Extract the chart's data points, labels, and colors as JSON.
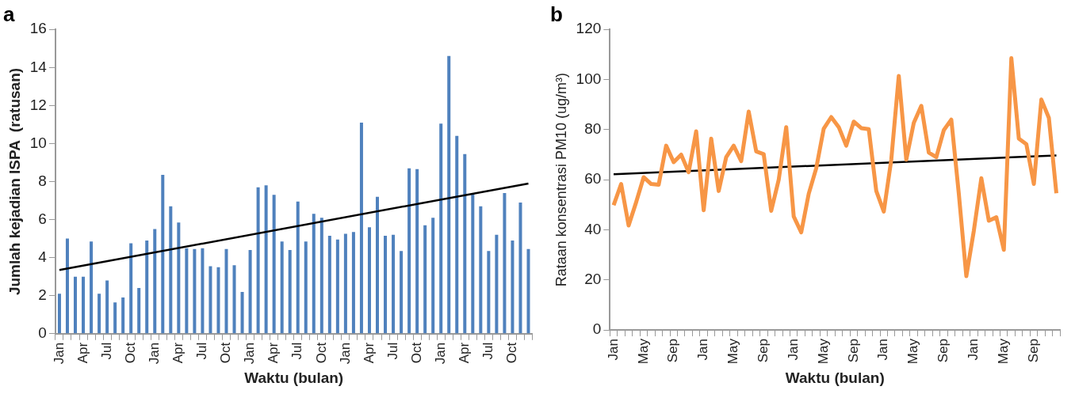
{
  "chart_data": [
    {
      "type": "bar",
      "title": "a",
      "xlabel": "Waktu (bulan)",
      "ylabel": "Jumlah kejadian ISPA  (ratusan)",
      "categories": [
        "Jan",
        null,
        null,
        "Apr",
        null,
        null,
        "Jul",
        null,
        null,
        "Oct",
        null,
        null,
        "Jan",
        null,
        null,
        "Apr",
        null,
        null,
        "Jul",
        null,
        null,
        "Oct",
        null,
        null,
        "Jan",
        null,
        null,
        "Apr",
        null,
        null,
        "Jul",
        null,
        null,
        "Oct",
        null,
        null,
        "Jan",
        null,
        null,
        "Apr",
        null,
        null,
        "Jul",
        null,
        null,
        "Oct",
        null,
        null,
        "Jan",
        null,
        null,
        "Apr",
        null,
        null,
        "Jul",
        null,
        null,
        "Oct",
        null,
        null
      ],
      "ylim": [
        0,
        16
      ],
      "yticks": [
        0,
        2,
        4,
        6,
        8,
        10,
        12,
        14,
        16
      ],
      "series": [
        {
          "color": "#4f81bd",
          "values": [
            2.1,
            5.0,
            3.0,
            3.0,
            4.85,
            2.1,
            2.8,
            1.65,
            1.9,
            4.75,
            2.4,
            4.9,
            5.5,
            8.35,
            6.7,
            5.85,
            4.5,
            4.45,
            4.5,
            3.55,
            3.5,
            4.45,
            3.6,
            2.2,
            4.4,
            7.7,
            7.8,
            7.3,
            4.85,
            4.4,
            6.95,
            4.85,
            6.3,
            6.1,
            5.15,
            4.95,
            5.25,
            5.35,
            11.1,
            5.6,
            7.2,
            5.15,
            5.2,
            4.35,
            8.7,
            8.65,
            5.7,
            6.1,
            11.05,
            14.6,
            10.4,
            9.45,
            7.4,
            6.7,
            4.35,
            5.2,
            7.4,
            4.9,
            6.9,
            4.45
          ]
        },
        {
          "type": "line",
          "color": "#000000",
          "values": [
            3.35,
            null,
            null,
            null,
            null,
            null,
            null,
            null,
            null,
            null,
            null,
            null,
            null,
            null,
            null,
            null,
            null,
            null,
            null,
            null,
            null,
            null,
            null,
            null,
            null,
            null,
            null,
            null,
            null,
            null,
            null,
            null,
            null,
            null,
            null,
            null,
            null,
            null,
            null,
            null,
            null,
            null,
            null,
            null,
            null,
            null,
            null,
            null,
            null,
            null,
            null,
            null,
            null,
            null,
            null,
            null,
            null,
            null,
            null,
            7.9
          ]
        }
      ]
    },
    {
      "type": "line",
      "title": "b",
      "xlabel": "Waktu (bulan)",
      "ylabel": "Rataan konsentrasi PM10 (ug/m³)",
      "marker": "none",
      "categories": [
        "Jan",
        null,
        null,
        null,
        "May",
        null,
        null,
        null,
        "Sep",
        null,
        null,
        null,
        "Jan",
        null,
        null,
        null,
        "May",
        null,
        null,
        null,
        "Sep",
        null,
        null,
        null,
        "Jan",
        null,
        null,
        null,
        "May",
        null,
        null,
        null,
        "Sep",
        null,
        null,
        null,
        "Jan",
        null,
        null,
        null,
        "May",
        null,
        null,
        null,
        "Sep",
        null,
        null,
        null,
        "Jan",
        null,
        null,
        null,
        "May",
        null,
        null,
        null,
        "Sep",
        null,
        null,
        null
      ],
      "ylim": [
        0,
        120
      ],
      "yticks": [
        0,
        20,
        40,
        60,
        80,
        100,
        120
      ],
      "series": [
        {
          "color": "#f79646",
          "values": [
            49.8,
            58.3,
            41.7,
            51,
            61,
            58.3,
            58,
            73.6,
            67,
            70,
            63,
            79.3,
            47.8,
            76.4,
            55.5,
            69,
            73.6,
            67.4,
            87.2,
            71.3,
            70.2,
            47.6,
            60,
            81,
            45.3,
            39,
            54.4,
            64.6,
            80.4,
            85,
            81,
            73.6,
            83.2,
            80.6,
            80.2,
            55.5,
            47.3,
            68,
            101.4,
            68,
            82.7,
            89.5,
            70.8,
            69,
            79.8,
            84,
            54.4,
            21.5,
            39.6,
            60.6,
            43.6,
            45,
            32,
            108.5,
            76.4,
            74.2,
            58.3,
            92,
            84.7,
            54.6
          ]
        },
        {
          "color": "#000000",
          "values": [
            62.2,
            null,
            null,
            null,
            null,
            null,
            null,
            null,
            null,
            null,
            null,
            null,
            null,
            null,
            null,
            null,
            null,
            null,
            null,
            null,
            null,
            null,
            null,
            null,
            null,
            null,
            null,
            null,
            null,
            null,
            null,
            null,
            null,
            null,
            null,
            null,
            null,
            null,
            null,
            null,
            null,
            null,
            null,
            null,
            null,
            null,
            null,
            null,
            null,
            null,
            null,
            null,
            null,
            null,
            null,
            null,
            null,
            null,
            null,
            69.7
          ]
        }
      ]
    }
  ]
}
